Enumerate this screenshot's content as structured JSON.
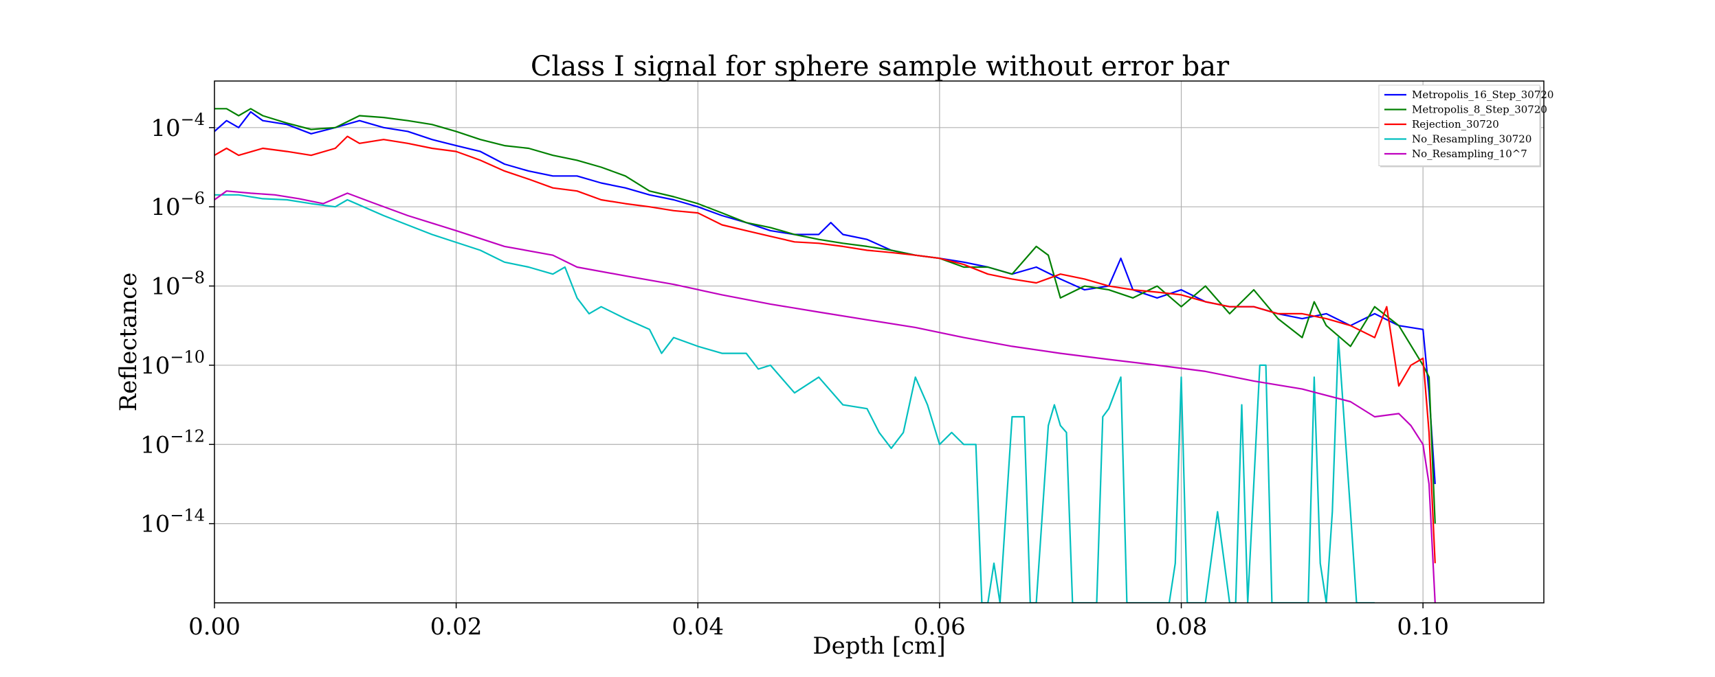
{
  "chart_data": {
    "type": "line",
    "title": "Class I signal for sphere sample without error bar",
    "xlabel": "Depth [cm]",
    "ylabel": "Reflectance",
    "yscale": "log",
    "xlim": [
      0.0,
      0.11
    ],
    "ylim": [
      1e-16,
      0.0015
    ],
    "grid": true,
    "legend_position": "top-right",
    "x_ticks": [
      {
        "value": 0.0,
        "label": "0.00"
      },
      {
        "value": 0.02,
        "label": "0.02"
      },
      {
        "value": 0.04,
        "label": "0.04"
      },
      {
        "value": 0.06,
        "label": "0.06"
      },
      {
        "value": 0.08,
        "label": "0.08"
      },
      {
        "value": 0.1,
        "label": "0.10"
      }
    ],
    "y_ticks": [
      {
        "value": 0.0001,
        "base": "10",
        "exp": "−4"
      },
      {
        "value": 1e-06,
        "base": "10",
        "exp": "−6"
      },
      {
        "value": 1e-08,
        "base": "10",
        "exp": "−8"
      },
      {
        "value": 1e-10,
        "base": "10",
        "exp": "−10"
      },
      {
        "value": 1e-12,
        "base": "10",
        "exp": "−12"
      },
      {
        "value": 1e-14,
        "base": "10",
        "exp": "−14"
      }
    ],
    "series": [
      {
        "name": "Metropolis_16_Step_30720",
        "color": "#0000ff",
        "x": [
          0.0,
          0.001,
          0.002,
          0.003,
          0.004,
          0.006,
          0.008,
          0.01,
          0.012,
          0.014,
          0.016,
          0.018,
          0.02,
          0.022,
          0.024,
          0.026,
          0.028,
          0.03,
          0.032,
          0.034,
          0.036,
          0.038,
          0.04,
          0.042,
          0.044,
          0.046,
          0.048,
          0.05,
          0.051,
          0.052,
          0.054,
          0.056,
          0.058,
          0.06,
          0.062,
          0.064,
          0.066,
          0.068,
          0.07,
          0.072,
          0.074,
          0.075,
          0.076,
          0.078,
          0.08,
          0.082,
          0.084,
          0.086,
          0.088,
          0.09,
          0.092,
          0.094,
          0.096,
          0.098,
          0.1,
          0.1005,
          0.101
        ],
        "y": [
          8e-05,
          0.00015,
          0.0001,
          0.00025,
          0.00015,
          0.00012,
          7e-05,
          0.0001,
          0.00015,
          0.0001,
          8e-05,
          5e-05,
          3.5e-05,
          2.5e-05,
          1.2e-05,
          8e-06,
          6e-06,
          6e-06,
          4e-06,
          3e-06,
          2e-06,
          1.5e-06,
          1e-06,
          6e-07,
          4e-07,
          2.5e-07,
          2e-07,
          2e-07,
          4e-07,
          2e-07,
          1.5e-07,
          8e-08,
          6e-08,
          5e-08,
          4e-08,
          3e-08,
          2e-08,
          3e-08,
          1.5e-08,
          8e-09,
          1e-08,
          5e-08,
          8e-09,
          5e-09,
          8e-09,
          4e-09,
          3e-09,
          3e-09,
          2e-09,
          1.5e-09,
          2e-09,
          1e-09,
          2e-09,
          1e-09,
          8e-10,
          2e-11,
          1e-13
        ]
      },
      {
        "name": "Metropolis_8_Step_30720",
        "color": "#008000",
        "x": [
          0.0,
          0.001,
          0.002,
          0.003,
          0.004,
          0.006,
          0.008,
          0.01,
          0.012,
          0.014,
          0.016,
          0.018,
          0.02,
          0.022,
          0.024,
          0.026,
          0.028,
          0.03,
          0.032,
          0.034,
          0.036,
          0.038,
          0.04,
          0.042,
          0.044,
          0.046,
          0.048,
          0.05,
          0.052,
          0.054,
          0.056,
          0.058,
          0.06,
          0.062,
          0.064,
          0.066,
          0.068,
          0.069,
          0.07,
          0.072,
          0.074,
          0.076,
          0.078,
          0.08,
          0.082,
          0.084,
          0.086,
          0.088,
          0.09,
          0.091,
          0.092,
          0.094,
          0.096,
          0.098,
          0.1,
          0.1005,
          0.101
        ],
        "y": [
          0.0003,
          0.0003,
          0.0002,
          0.0003,
          0.0002,
          0.00013,
          9e-05,
          0.0001,
          0.0002,
          0.00018,
          0.00015,
          0.00012,
          8e-05,
          5e-05,
          3.5e-05,
          3e-05,
          2e-05,
          1.5e-05,
          1e-05,
          6e-06,
          2.5e-06,
          1.8e-06,
          1.2e-06,
          7e-07,
          4e-07,
          3e-07,
          2e-07,
          1.5e-07,
          1.2e-07,
          1e-07,
          8e-08,
          6e-08,
          5e-08,
          3e-08,
          3e-08,
          2e-08,
          1e-07,
          6e-08,
          5e-09,
          1e-08,
          8e-09,
          5e-09,
          1e-08,
          3e-09,
          1e-08,
          2e-09,
          8e-09,
          1.5e-09,
          5e-10,
          4e-09,
          1e-09,
          3e-10,
          3e-09,
          1e-09,
          1e-10,
          5e-11,
          1e-14
        ]
      },
      {
        "name": "Rejection_30720",
        "color": "#ff0000",
        "x": [
          0.0,
          0.001,
          0.002,
          0.004,
          0.006,
          0.008,
          0.01,
          0.011,
          0.012,
          0.014,
          0.016,
          0.018,
          0.02,
          0.022,
          0.024,
          0.026,
          0.028,
          0.03,
          0.032,
          0.034,
          0.036,
          0.038,
          0.04,
          0.042,
          0.044,
          0.046,
          0.048,
          0.05,
          0.052,
          0.054,
          0.056,
          0.058,
          0.06,
          0.062,
          0.064,
          0.066,
          0.068,
          0.07,
          0.072,
          0.074,
          0.076,
          0.078,
          0.08,
          0.082,
          0.084,
          0.086,
          0.088,
          0.09,
          0.092,
          0.094,
          0.096,
          0.097,
          0.098,
          0.099,
          0.1,
          0.1005,
          0.101
        ],
        "y": [
          2e-05,
          3e-05,
          2e-05,
          3e-05,
          2.5e-05,
          2e-05,
          3e-05,
          6e-05,
          4e-05,
          5e-05,
          4e-05,
          3e-05,
          2.5e-05,
          1.5e-05,
          8e-06,
          5e-06,
          3e-06,
          2.5e-06,
          1.5e-06,
          1.2e-06,
          1e-06,
          8e-07,
          7e-07,
          3.5e-07,
          2.5e-07,
          1.8e-07,
          1.3e-07,
          1.2e-07,
          1e-07,
          8e-08,
          7e-08,
          6e-08,
          5e-08,
          3.5e-08,
          2e-08,
          1.5e-08,
          1.2e-08,
          2e-08,
          1.5e-08,
          1e-08,
          8e-09,
          7e-09,
          6e-09,
          4e-09,
          3e-09,
          3e-09,
          2e-09,
          2e-09,
          1.5e-09,
          1e-09,
          5e-10,
          3e-09,
          3e-11,
          1e-10,
          1.5e-10,
          2e-12,
          1e-15
        ]
      },
      {
        "name": "No_Resampling_30720",
        "color": "#00bfbf",
        "x": [
          0.0,
          0.002,
          0.004,
          0.006,
          0.008,
          0.01,
          0.011,
          0.014,
          0.018,
          0.022,
          0.024,
          0.026,
          0.028,
          0.029,
          0.03,
          0.031,
          0.032,
          0.034,
          0.036,
          0.037,
          0.038,
          0.04,
          0.042,
          0.044,
          0.045,
          0.046,
          0.048,
          0.05,
          0.052,
          0.054,
          0.055,
          0.056,
          0.057,
          0.058,
          0.059,
          0.06,
          0.061,
          0.062,
          0.063,
          0.0635,
          0.064,
          0.0645,
          0.065,
          0.066,
          0.067,
          0.0675,
          0.068,
          0.069,
          0.0695,
          0.07,
          0.0705,
          0.071,
          0.073,
          0.0735,
          0.074,
          0.0745,
          0.075,
          0.0755,
          0.076,
          0.078,
          0.079,
          0.0795,
          0.08,
          0.0805,
          0.081,
          0.082,
          0.083,
          0.084,
          0.0845,
          0.085,
          0.0855,
          0.086,
          0.0865,
          0.087,
          0.0875,
          0.088,
          0.089,
          0.09,
          0.0905,
          0.091,
          0.0915,
          0.092,
          0.0925,
          0.093,
          0.094,
          0.0945,
          0.095,
          0.0955,
          0.096
        ],
        "y": [
          2e-06,
          2e-06,
          1.6e-06,
          1.5e-06,
          1.2e-06,
          1e-06,
          1.5e-06,
          6e-07,
          2e-07,
          8e-08,
          4e-08,
          3e-08,
          2e-08,
          3e-08,
          5e-09,
          2e-09,
          3e-09,
          1.5e-09,
          8e-10,
          2e-10,
          5e-10,
          3e-10,
          2e-10,
          2e-10,
          8e-11,
          1e-10,
          2e-11,
          5e-11,
          1e-11,
          8e-12,
          2e-12,
          8e-13,
          2e-12,
          5e-11,
          1e-11,
          1e-12,
          2e-12,
          1e-12,
          1e-12,
          1e-16,
          1e-16,
          1e-15,
          1e-16,
          5e-12,
          5e-12,
          1e-16,
          1e-16,
          3e-12,
          1e-11,
          3e-12,
          2e-12,
          1e-16,
          1e-16,
          5e-12,
          8e-12,
          2e-11,
          5e-11,
          1e-16,
          1e-16,
          1e-16,
          1e-16,
          1e-15,
          5e-11,
          1e-16,
          1e-16,
          1e-16,
          2e-14,
          1e-16,
          1e-16,
          1e-11,
          1e-16,
          1e-13,
          1e-10,
          1e-10,
          1e-16,
          1e-16,
          1e-16,
          1e-16,
          1e-16,
          5e-11,
          1e-15,
          1e-16,
          2e-14,
          5e-10,
          2e-14,
          1e-16,
          1e-16,
          1e-16,
          1e-16
        ]
      },
      {
        "name": "No_Resampling_10^7",
        "color": "#bf00bf",
        "x": [
          0.0,
          0.001,
          0.003,
          0.005,
          0.007,
          0.009,
          0.011,
          0.013,
          0.016,
          0.02,
          0.024,
          0.028,
          0.03,
          0.034,
          0.038,
          0.042,
          0.046,
          0.05,
          0.054,
          0.058,
          0.062,
          0.066,
          0.07,
          0.074,
          0.078,
          0.082,
          0.086,
          0.09,
          0.094,
          0.096,
          0.098,
          0.099,
          0.1,
          0.1005,
          0.101
        ],
        "y": [
          1.5e-06,
          2.5e-06,
          2.2e-06,
          2e-06,
          1.6e-06,
          1.2e-06,
          2.2e-06,
          1.3e-06,
          6e-07,
          2.5e-07,
          1e-07,
          6e-08,
          3e-08,
          1.8e-08,
          1.1e-08,
          6e-09,
          3.5e-09,
          2.2e-09,
          1.4e-09,
          9e-10,
          5e-10,
          3e-10,
          2e-10,
          1.4e-10,
          1e-10,
          7e-11,
          4e-11,
          2.5e-11,
          1.2e-11,
          5e-12,
          6e-12,
          3e-12,
          1e-12,
          1e-13,
          1e-16
        ]
      }
    ]
  }
}
